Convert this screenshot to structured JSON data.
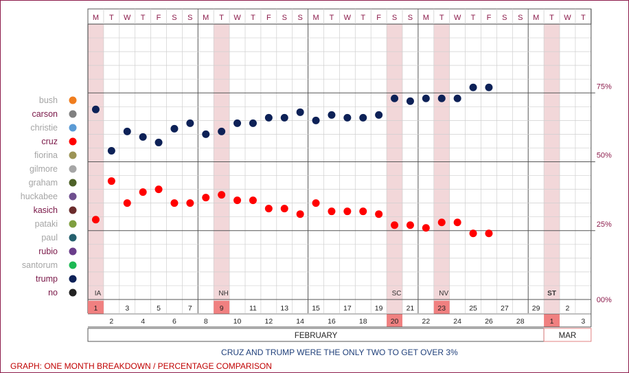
{
  "chart_data": {
    "type": "scatter",
    "days": [
      {
        "dow": "M",
        "date": "1",
        "primary": "IA"
      },
      {
        "dow": "T",
        "date": "2"
      },
      {
        "dow": "W",
        "date": "3"
      },
      {
        "dow": "T",
        "date": "4"
      },
      {
        "dow": "F",
        "date": "5"
      },
      {
        "dow": "S",
        "date": "6"
      },
      {
        "dow": "S",
        "date": "7"
      },
      {
        "dow": "M",
        "date": "8"
      },
      {
        "dow": "T",
        "date": "9",
        "primary": "NH"
      },
      {
        "dow": "W",
        "date": "10"
      },
      {
        "dow": "T",
        "date": "11"
      },
      {
        "dow": "F",
        "date": "12"
      },
      {
        "dow": "S",
        "date": "13"
      },
      {
        "dow": "S",
        "date": "14"
      },
      {
        "dow": "M",
        "date": "15"
      },
      {
        "dow": "T",
        "date": "16"
      },
      {
        "dow": "W",
        "date": "17"
      },
      {
        "dow": "T",
        "date": "18"
      },
      {
        "dow": "F",
        "date": "19"
      },
      {
        "dow": "S",
        "date": "20",
        "primary": "SC"
      },
      {
        "dow": "S",
        "date": "21"
      },
      {
        "dow": "M",
        "date": "22"
      },
      {
        "dow": "T",
        "date": "23",
        "primary": "NV"
      },
      {
        "dow": "W",
        "date": "24"
      },
      {
        "dow": "T",
        "date": "25"
      },
      {
        "dow": "F",
        "date": "26"
      },
      {
        "dow": "S",
        "date": "27"
      },
      {
        "dow": "S",
        "date": "28"
      },
      {
        "dow": "M",
        "date": "29"
      },
      {
        "dow": "T",
        "date": "1",
        "primary": "ST"
      },
      {
        "dow": "W",
        "date": "2"
      },
      {
        "dow": "T",
        "date": "3"
      }
    ],
    "months": [
      {
        "label": "FEBRUARY",
        "start": 0,
        "end": 29
      },
      {
        "label": "MAR",
        "start": 29,
        "end": 32
      }
    ],
    "ylim": [
      0,
      100
    ],
    "y_ticks": [
      {
        "value": 0,
        "label": "00%"
      },
      {
        "value": 25,
        "label": "25%"
      },
      {
        "value": 50,
        "label": "50%"
      },
      {
        "value": 75,
        "label": "75%"
      }
    ],
    "legend": [
      {
        "name": "bush",
        "color": "#f07d1e",
        "active": false
      },
      {
        "name": "carson",
        "color": "#808080",
        "active": true
      },
      {
        "name": "christie",
        "color": "#5b9bd5",
        "active": false
      },
      {
        "name": "cruz",
        "color": "#ff0000",
        "active": true
      },
      {
        "name": "fiorina",
        "color": "#9c9456",
        "active": false
      },
      {
        "name": "gilmore",
        "color": "#a6a6a6",
        "active": false
      },
      {
        "name": "graham",
        "color": "#4e6228",
        "active": false
      },
      {
        "name": "huckabee",
        "color": "#6f4f8f",
        "active": false
      },
      {
        "name": "kasich",
        "color": "#6b2c2c",
        "active": true
      },
      {
        "name": "pataki",
        "color": "#7f9f3f",
        "active": false
      },
      {
        "name": "paul",
        "color": "#25606e",
        "active": false
      },
      {
        "name": "rubio",
        "color": "#6a3d8a",
        "active": true
      },
      {
        "name": "santorum",
        "color": "#1db954",
        "active": false
      },
      {
        "name": "trump",
        "color": "#0d2157",
        "active": true
      },
      {
        "name": "no",
        "color": "#222222",
        "active": true
      }
    ],
    "series": [
      {
        "name": "trump",
        "color": "#0d2157",
        "points": [
          [
            0,
            69
          ],
          [
            1,
            54
          ],
          [
            2,
            61
          ],
          [
            3,
            59
          ],
          [
            4,
            57
          ],
          [
            5,
            62
          ],
          [
            6,
            64
          ],
          [
            7,
            60
          ],
          [
            8,
            61
          ],
          [
            9,
            64
          ],
          [
            10,
            64
          ],
          [
            11,
            66
          ],
          [
            12,
            66
          ],
          [
            13,
            68
          ],
          [
            14,
            65
          ],
          [
            15,
            67
          ],
          [
            16,
            66
          ],
          [
            17,
            66
          ],
          [
            18,
            67
          ],
          [
            19,
            73
          ],
          [
            20,
            72
          ],
          [
            21,
            73
          ],
          [
            22,
            73
          ],
          [
            23,
            73
          ],
          [
            24,
            77
          ],
          [
            25,
            77
          ]
        ]
      },
      {
        "name": "cruz",
        "color": "#ff0000",
        "points": [
          [
            0,
            29
          ],
          [
            1,
            43
          ],
          [
            2,
            35
          ],
          [
            3,
            39
          ],
          [
            4,
            40
          ],
          [
            5,
            35
          ],
          [
            6,
            35
          ],
          [
            7,
            37
          ],
          [
            8,
            38
          ],
          [
            9,
            36
          ],
          [
            10,
            36
          ],
          [
            11,
            33
          ],
          [
            12,
            33
          ],
          [
            13,
            31
          ],
          [
            14,
            35
          ],
          [
            15,
            32
          ],
          [
            16,
            32
          ],
          [
            17,
            32
          ],
          [
            18,
            31
          ],
          [
            19,
            27
          ],
          [
            20,
            27
          ],
          [
            21,
            26
          ],
          [
            22,
            28
          ],
          [
            23,
            28
          ],
          [
            24,
            24
          ],
          [
            25,
            24
          ]
        ]
      }
    ],
    "annotation": "CRUZ AND TRUMP WERE THE ONLY TWO TO GET OVER 3%",
    "footer": "GRAPH: ONE MONTH BREAKDOWN / PERCENTAGE COMPARISON"
  }
}
